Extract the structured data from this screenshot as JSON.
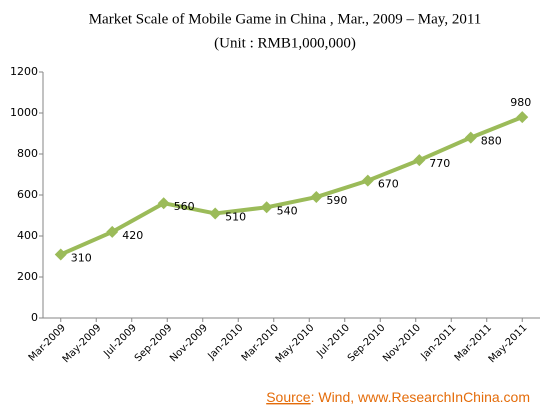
{
  "chart_data": {
    "type": "line",
    "title": "Market Scale of Mobile Game in China , Mar., 2009 – May, 2011",
    "subtitle": "(Unit : RMB1,000,000)",
    "source_label": "Source",
    "source_text": ": Wind, www.ResearchInChina.com",
    "x": [
      0,
      2.9,
      5.8,
      8.7,
      11.6,
      14.4,
      17.3,
      20.2,
      23.1,
      26
    ],
    "series": [
      {
        "name": "Market Scale",
        "color": "#9bbb59",
        "values": [
          310,
          420,
          560,
          510,
          540,
          590,
          670,
          770,
          880,
          980
        ]
      }
    ],
    "xlim": [
      -1,
      27
    ],
    "xticks": [
      {
        "value": 0,
        "label": "Mar-2009"
      },
      {
        "value": 2,
        "label": "May-2009"
      },
      {
        "value": 4,
        "label": "Jul-2009"
      },
      {
        "value": 6,
        "label": "Sep-2009"
      },
      {
        "value": 8,
        "label": "Nov-2009"
      },
      {
        "value": 10,
        "label": "Jan-2010"
      },
      {
        "value": 12,
        "label": "Mar-2010"
      },
      {
        "value": 14,
        "label": "May-2010"
      },
      {
        "value": 16,
        "label": "Jul-2010"
      },
      {
        "value": 18,
        "label": "Sep-2010"
      },
      {
        "value": 20,
        "label": "Nov-2010"
      },
      {
        "value": 22,
        "label": "Jan-2011"
      },
      {
        "value": 24,
        "label": "Mar-2011"
      },
      {
        "value": 26,
        "label": "May-2011"
      }
    ],
    "ylim": [
      0,
      1200
    ],
    "yticks": [
      0,
      200,
      400,
      600,
      800,
      1000,
      1200
    ],
    "grid": false
  }
}
